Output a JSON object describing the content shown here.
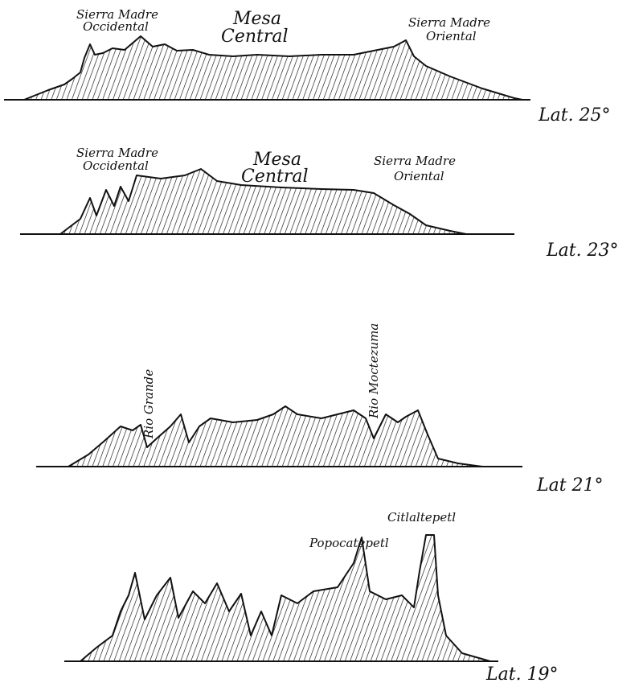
{
  "profiles": [
    {
      "latitude": "Lat. 25°",
      "labels": [
        {
          "lines": [
            "Sierra Madre",
            "Occidental"
          ]
        },
        {
          "lines": [
            "Mesa",
            "Central"
          ]
        },
        {
          "lines": [
            "Sierra Madre",
            "Oriental"
          ]
        }
      ]
    },
    {
      "latitude": "Lat. 23°",
      "labels": [
        {
          "lines": [
            "Sierra Madre",
            "Occidental"
          ]
        },
        {
          "lines": [
            "Mesa",
            "Central"
          ]
        },
        {
          "lines": [
            "Sierra Madre",
            "Oriental"
          ]
        }
      ]
    },
    {
      "latitude": "Lat 21°",
      "labels": [
        {
          "lines": [
            "Rio Grande"
          ]
        },
        {
          "lines": [
            "Rio Moctezuma"
          ]
        }
      ]
    },
    {
      "latitude": "Lat. 19°",
      "labels": [
        {
          "lines": [
            "Popocatepetl"
          ]
        },
        {
          "lines": [
            "Citlaltepetl"
          ]
        }
      ]
    }
  ]
}
